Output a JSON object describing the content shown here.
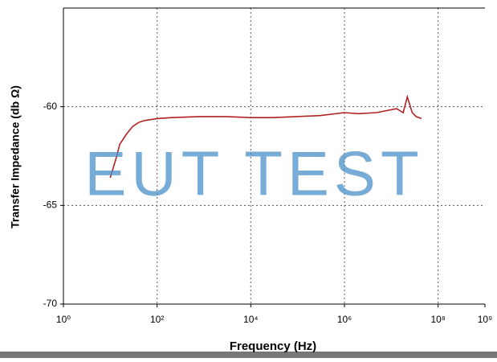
{
  "chart_data": {
    "type": "line",
    "x_label": "Frequency (Hz)",
    "y_label": "Transfer Impedance (db Ω)",
    "watermark": "EUT TEST",
    "xscale": "log",
    "grid": true,
    "xlim": [
      1,
      1000000000
    ],
    "xticks": [
      {
        "value": 1,
        "label": "10⁰"
      },
      {
        "value": 100,
        "label": "10²"
      },
      {
        "value": 10000,
        "label": "10⁴"
      },
      {
        "value": 1000000,
        "label": "10⁶"
      },
      {
        "value": 100000000,
        "label": "10⁸"
      },
      {
        "value": 1000000000,
        "label": "10⁹"
      }
    ],
    "ylim": [
      -70,
      -55
    ],
    "yticks": [
      -70,
      -65,
      -60
    ],
    "x": [
      10,
      13,
      16,
      22,
      30,
      40,
      54,
      75,
      100,
      200,
      830,
      3000,
      10000,
      30000,
      94000,
      300000,
      1000000,
      2000000,
      4800000,
      13000000,
      18000000,
      22000000,
      28000000,
      34000000,
      44000000
    ],
    "series": [
      {
        "color": "#b22222",
        "values": [
          -63.6,
          -62.7,
          -61.9,
          -61.4,
          -61.0,
          -60.8,
          -60.7,
          -60.65,
          -60.6,
          -60.55,
          -60.5,
          -60.5,
          -60.55,
          -60.55,
          -60.5,
          -60.45,
          -60.3,
          -60.35,
          -60.3,
          -60.1,
          -60.3,
          -59.5,
          -60.3,
          -60.5,
          -60.6
        ]
      }
    ]
  }
}
